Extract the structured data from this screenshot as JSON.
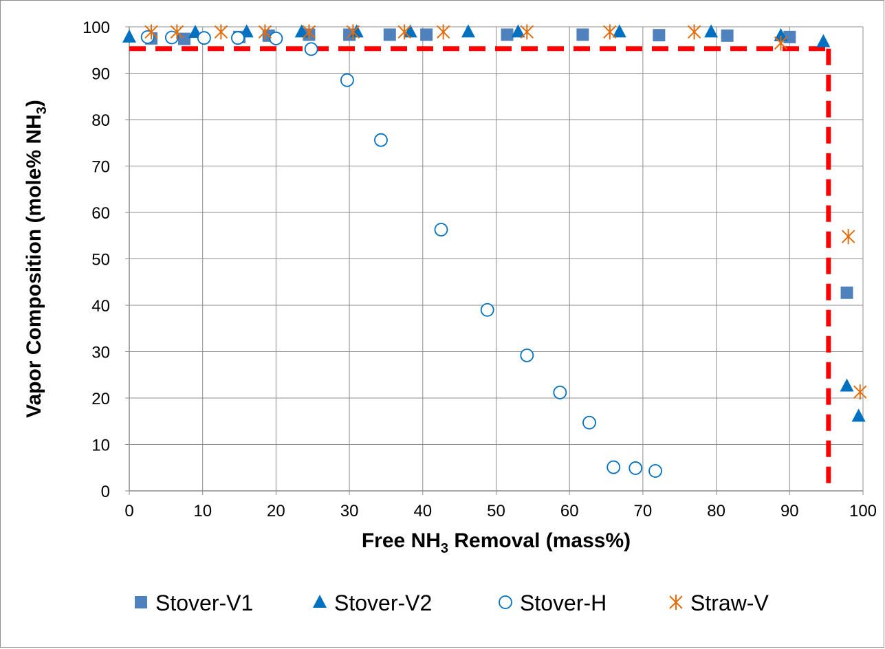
{
  "chart_data": {
    "type": "scatter",
    "title": "",
    "xlabel": {
      "pre": "Free NH",
      "sub": "3",
      "post": " Removal (mass%)"
    },
    "ylabel": {
      "pre": "Vapor Composition (mole% NH",
      "sub": "3",
      "post": ")"
    },
    "xlim": [
      0,
      100
    ],
    "ylim": [
      0,
      100
    ],
    "xticks": [
      0,
      10,
      20,
      30,
      40,
      50,
      60,
      70,
      80,
      90,
      100
    ],
    "yticks": [
      0,
      10,
      20,
      30,
      40,
      50,
      60,
      70,
      80,
      90,
      100
    ],
    "grid": true,
    "legend_position": "bottom",
    "reference_lines": {
      "color": "#ff0000",
      "style": "dashed",
      "horizontal_y": 95.3,
      "horizontal_x_range": [
        0,
        95.3
      ],
      "vertical_x": 95.3,
      "vertical_y_range": [
        0,
        95.3
      ]
    },
    "series": [
      {
        "name": "Stover-V1",
        "marker": "square",
        "color": "#4f81bd",
        "points": [
          [
            3,
            97.5
          ],
          [
            7.5,
            97.4
          ],
          [
            15,
            97.8
          ],
          [
            19,
            98.1
          ],
          [
            24.5,
            98.3
          ],
          [
            30,
            98.3
          ],
          [
            35.5,
            98.3
          ],
          [
            40.5,
            98.3
          ],
          [
            51.5,
            98.3
          ],
          [
            61.8,
            98.3
          ],
          [
            72.2,
            98.2
          ],
          [
            81.5,
            98.1
          ],
          [
            90,
            97.8
          ],
          [
            97.8,
            42.7
          ]
        ]
      },
      {
        "name": "Stover-V2",
        "marker": "triangle",
        "color": "#0070c0",
        "points": [
          [
            0,
            97.8
          ],
          [
            9,
            98.8
          ],
          [
            16,
            98.9
          ],
          [
            23.5,
            98.9
          ],
          [
            31,
            98.9
          ],
          [
            38.3,
            98.9
          ],
          [
            46.2,
            98.9
          ],
          [
            53,
            98.9
          ],
          [
            66.8,
            98.9
          ],
          [
            79.3,
            98.9
          ],
          [
            88.8,
            98.1
          ],
          [
            94.6,
            96.8
          ],
          [
            97.8,
            22.6
          ],
          [
            99.4,
            16.1
          ]
        ]
      },
      {
        "name": "Stover-H",
        "marker": "circle-open",
        "color": "#0070c0",
        "points": [
          [
            2.5,
            97.8
          ],
          [
            5.8,
            97.7
          ],
          [
            10.2,
            97.6
          ],
          [
            14.8,
            97.6
          ],
          [
            20,
            97.5
          ],
          [
            24.8,
            95.2
          ],
          [
            29.7,
            88.5
          ],
          [
            34.3,
            75.6
          ],
          [
            42.5,
            56.3
          ],
          [
            48.8,
            39
          ],
          [
            54.2,
            29.2
          ],
          [
            58.7,
            21.2
          ],
          [
            62.7,
            14.7
          ],
          [
            66,
            5.1
          ],
          [
            69,
            4.9
          ],
          [
            71.7,
            4.3
          ]
        ]
      },
      {
        "name": "Straw-V",
        "marker": "asterisk",
        "color": "#e46c0a",
        "points": [
          [
            3,
            98.9
          ],
          [
            6.5,
            98.9
          ],
          [
            12.5,
            98.9
          ],
          [
            18.5,
            98.9
          ],
          [
            24.5,
            98.9
          ],
          [
            30.5,
            98.9
          ],
          [
            37.5,
            98.9
          ],
          [
            42.8,
            98.9
          ],
          [
            54.2,
            98.9
          ],
          [
            65.5,
            98.9
          ],
          [
            77,
            98.9
          ],
          [
            88.8,
            96.5
          ],
          [
            98,
            54.8
          ],
          [
            99.6,
            21.3
          ]
        ]
      }
    ]
  }
}
